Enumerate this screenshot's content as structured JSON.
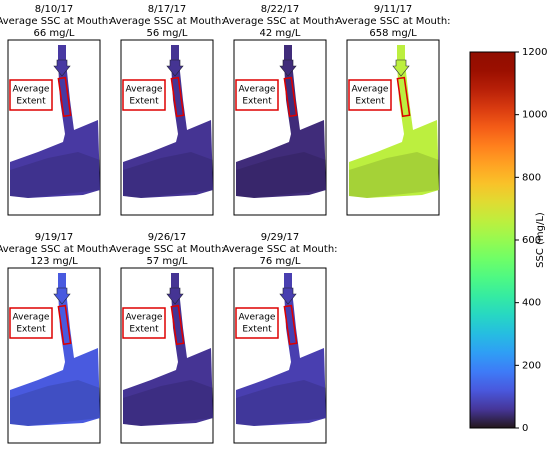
{
  "figure": {
    "panels": [
      {
        "date": "8/10/17",
        "caption": "Average SSC at Mouth:",
        "value": 66,
        "value_label": "66 mg/L"
      },
      {
        "date": "8/17/17",
        "caption": "Average SSC at Mouth:",
        "value": 56,
        "value_label": "56 mg/L"
      },
      {
        "date": "8/22/17",
        "caption": "Average SSC at Mouth:",
        "value": 42,
        "value_label": "42 mg/L"
      },
      {
        "date": "9/11/17",
        "caption": "Average SSC at Mouth:",
        "value": 658,
        "value_label": "658 mg/L"
      },
      {
        "date": "9/19/17",
        "caption": "Average SSC at Mouth:",
        "value": 123,
        "value_label": "123 mg/L"
      },
      {
        "date": "9/26/17",
        "caption": "Average SSC at Mouth:",
        "value": 57,
        "value_label": "57 mg/L"
      },
      {
        "date": "9/29/17",
        "caption": "Average SSC at Mouth:",
        "value": 76,
        "value_label": "76 mg/L"
      }
    ],
    "extent_label": [
      "Average",
      "Extent"
    ],
    "colorbar": {
      "label": "SSC (mg/L)",
      "lim": [
        0,
        1200
      ],
      "ticks": [
        0,
        200,
        400,
        600,
        800,
        1000,
        1200
      ]
    }
  }
}
